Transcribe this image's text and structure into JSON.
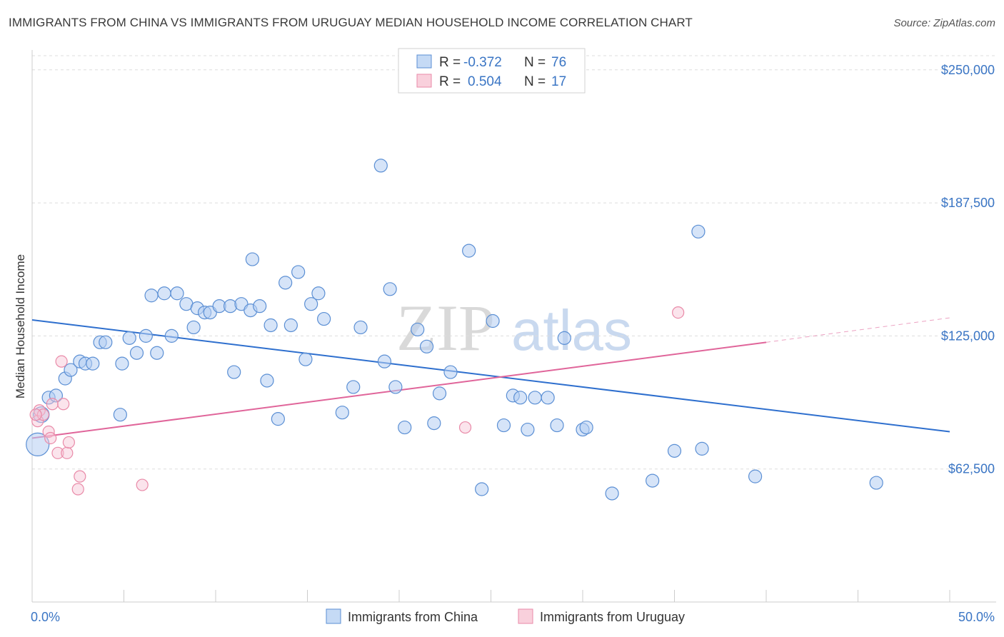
{
  "title": "IMMIGRANTS FROM CHINA VS IMMIGRANTS FROM URUGUAY MEDIAN HOUSEHOLD INCOME CORRELATION CHART",
  "source": "Source: ZipAtlas.com",
  "watermark": {
    "zip": "ZIP",
    "atlas": "atlas"
  },
  "legend": {
    "china": {
      "r_label": "R =",
      "r_value": "-0.372",
      "n_label": "N =",
      "n_value": "76"
    },
    "uruguay": {
      "r_label": "R =",
      "r_value": "0.504",
      "n_label": "N =",
      "n_value": "17"
    }
  },
  "chart_data": {
    "type": "scatter",
    "title": "IMMIGRANTS FROM CHINA VS IMMIGRANTS FROM URUGUAY MEDIAN HOUSEHOLD INCOME CORRELATION CHART",
    "xlabel": "",
    "ylabel": "Median Household Income",
    "xlim": [
      0,
      50
    ],
    "ylim": [
      0,
      262000
    ],
    "x_tick_labels": [
      "0.0%",
      "50.0%"
    ],
    "y_ticks": [
      62500,
      125000,
      187500,
      250000
    ],
    "y_tick_labels": [
      "$62,500",
      "$125,000",
      "$187,500",
      "$250,000"
    ],
    "grid": true,
    "colors": {
      "china": "#5b8fd4",
      "uruguay": "#e98aa8",
      "china_line": "#2e6fce",
      "uruguay_line": "#e0659a"
    },
    "series": [
      {
        "name": "Immigrants from China",
        "trend": {
          "x": [
            0,
            50
          ],
          "y": [
            132500,
            80000
          ]
        },
        "points": [
          [
            0.3,
            74000
          ],
          [
            0.5,
            88000
          ],
          [
            0.9,
            96000
          ],
          [
            1.3,
            97000
          ],
          [
            1.8,
            105000
          ],
          [
            2.1,
            109000
          ],
          [
            2.6,
            113000
          ],
          [
            2.9,
            112000
          ],
          [
            3.3,
            112000
          ],
          [
            3.7,
            122000
          ],
          [
            4.0,
            122000
          ],
          [
            4.8,
            88000
          ],
          [
            4.9,
            112000
          ],
          [
            5.3,
            124000
          ],
          [
            5.7,
            117000
          ],
          [
            6.2,
            125000
          ],
          [
            6.5,
            144000
          ],
          [
            6.8,
            117000
          ],
          [
            7.2,
            145000
          ],
          [
            7.6,
            125000
          ],
          [
            7.9,
            145000
          ],
          [
            8.4,
            140000
          ],
          [
            8.8,
            129000
          ],
          [
            9.0,
            138000
          ],
          [
            9.4,
            136000
          ],
          [
            9.7,
            136000
          ],
          [
            10.2,
            139000
          ],
          [
            10.8,
            139000
          ],
          [
            11.0,
            108000
          ],
          [
            11.4,
            140000
          ],
          [
            11.9,
            137000
          ],
          [
            12.0,
            161000
          ],
          [
            12.4,
            139000
          ],
          [
            12.8,
            104000
          ],
          [
            13.0,
            130000
          ],
          [
            13.4,
            86000
          ],
          [
            13.8,
            150000
          ],
          [
            14.1,
            130000
          ],
          [
            14.5,
            155000
          ],
          [
            14.9,
            114000
          ],
          [
            15.2,
            140000
          ],
          [
            15.6,
            145000
          ],
          [
            15.9,
            133000
          ],
          [
            16.9,
            89000
          ],
          [
            17.5,
            101000
          ],
          [
            17.9,
            129000
          ],
          [
            19.0,
            205000
          ],
          [
            19.2,
            113000
          ],
          [
            19.5,
            147000
          ],
          [
            19.8,
            101000
          ],
          [
            20.3,
            82000
          ],
          [
            21.0,
            128000
          ],
          [
            21.5,
            120000
          ],
          [
            21.9,
            84000
          ],
          [
            22.2,
            98000
          ],
          [
            22.8,
            108000
          ],
          [
            23.8,
            165000
          ],
          [
            24.5,
            53000
          ],
          [
            25.1,
            132000
          ],
          [
            25.7,
            83000
          ],
          [
            26.2,
            97000
          ],
          [
            26.6,
            96000
          ],
          [
            27.0,
            81000
          ],
          [
            27.4,
            96000
          ],
          [
            28.1,
            96000
          ],
          [
            28.6,
            83000
          ],
          [
            29.0,
            124000
          ],
          [
            30.0,
            81000
          ],
          [
            30.2,
            82000
          ],
          [
            31.6,
            51000
          ],
          [
            33.8,
            57000
          ],
          [
            35.0,
            71000
          ],
          [
            36.3,
            174000
          ],
          [
            36.5,
            72000
          ],
          [
            39.4,
            59000
          ],
          [
            46.0,
            56000
          ]
        ]
      },
      {
        "name": "Immigrants from Uruguay",
        "trend": {
          "x": [
            0,
            40
          ],
          "y": [
            77000,
            122000
          ]
        },
        "trend_dashed": {
          "x": [
            40,
            50
          ],
          "y": [
            122000,
            133500
          ]
        },
        "points": [
          [
            0.3,
            85000
          ],
          [
            0.4,
            90000
          ],
          [
            0.6,
            88000
          ],
          [
            0.9,
            80000
          ],
          [
            1.0,
            77000
          ],
          [
            1.1,
            93000
          ],
          [
            1.4,
            70000
          ],
          [
            1.6,
            113000
          ],
          [
            1.7,
            93000
          ],
          [
            1.9,
            70000
          ],
          [
            2.0,
            75000
          ],
          [
            2.5,
            53000
          ],
          [
            2.6,
            59000
          ],
          [
            6.0,
            55000
          ],
          [
            23.6,
            82000
          ],
          [
            35.2,
            136000
          ],
          [
            0.2,
            88000
          ]
        ]
      }
    ]
  },
  "bottom_legend": {
    "china": "Immigrants from China",
    "uruguay": "Immigrants from Uruguay"
  }
}
